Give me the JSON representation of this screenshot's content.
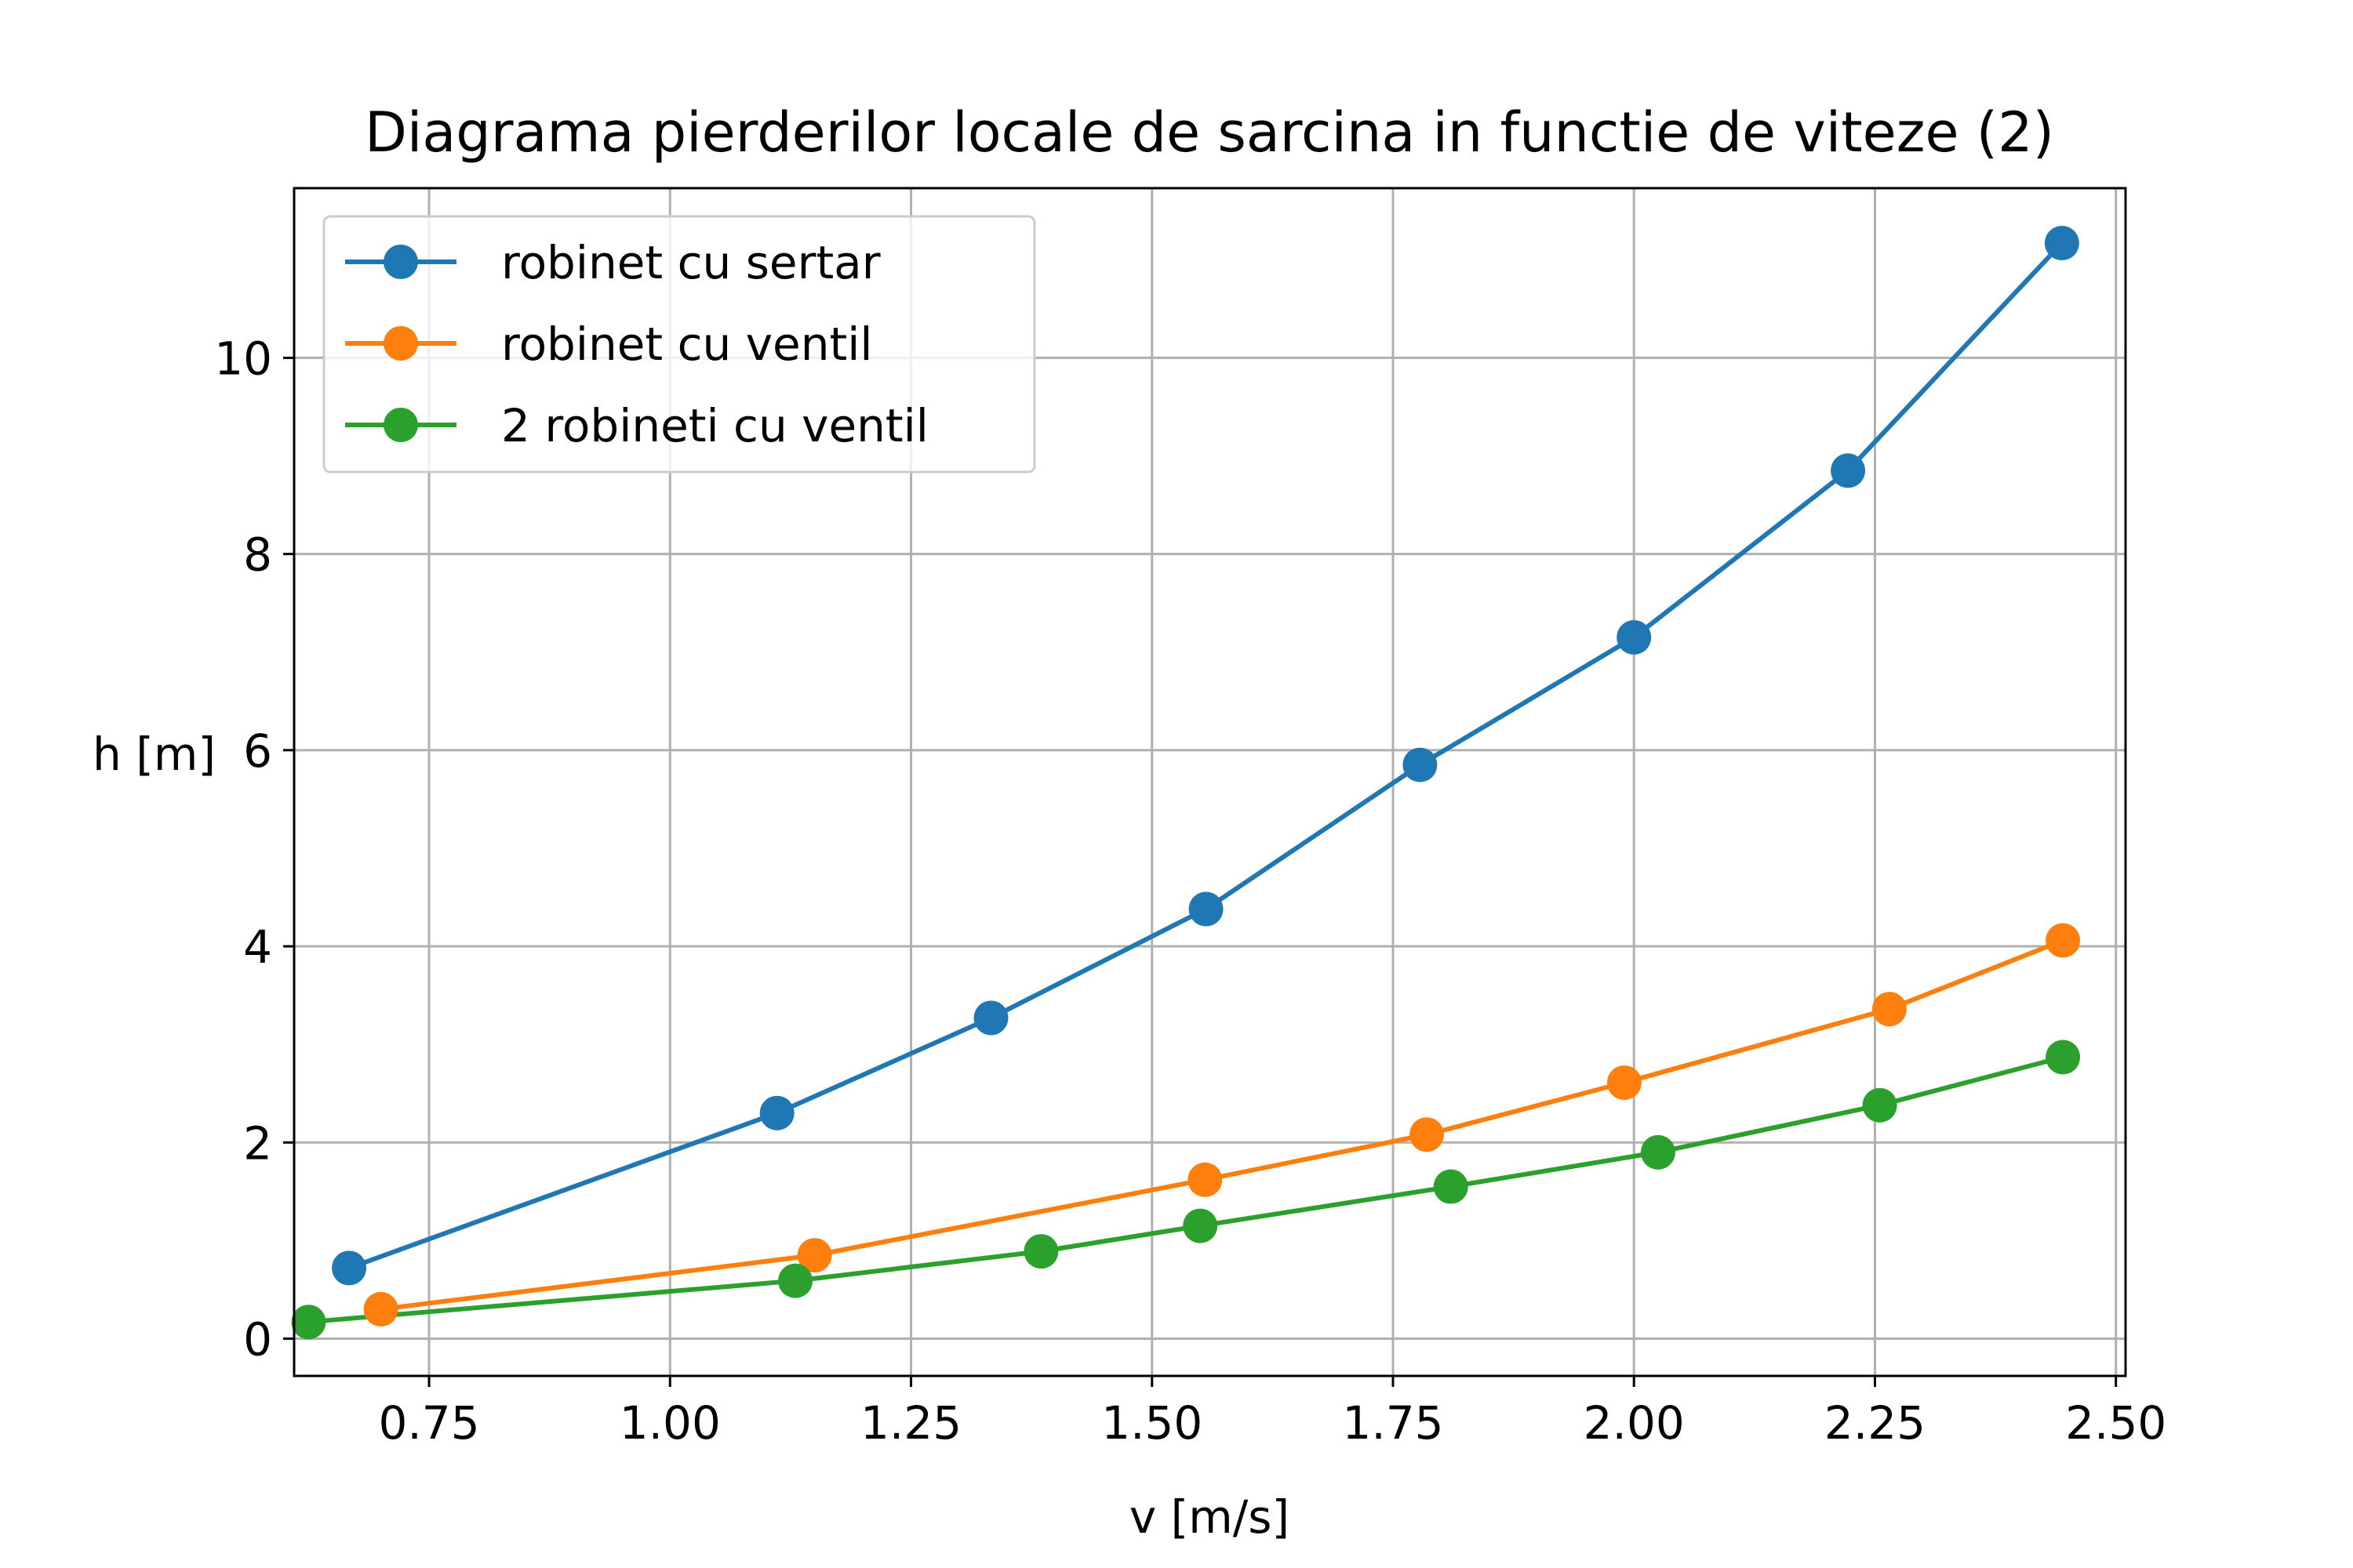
{
  "chart_data": {
    "type": "line",
    "title": "Diagrama pierderilor locale de sarcina in functie de viteze (2)",
    "xlabel": "v [m/s]",
    "ylabel": "h [m]",
    "xlim": [
      0.61,
      2.51
    ],
    "ylim": [
      -0.38,
      11.73
    ],
    "grid": true,
    "legend_position": "top-left",
    "xticks": [
      {
        "value": 0.75,
        "label": "0.75"
      },
      {
        "value": 1.0,
        "label": "1.00"
      },
      {
        "value": 1.25,
        "label": "1.25"
      },
      {
        "value": 1.5,
        "label": "1.50"
      },
      {
        "value": 1.75,
        "label": "1.75"
      },
      {
        "value": 2.0,
        "label": "2.00"
      },
      {
        "value": 2.25,
        "label": "2.25"
      },
      {
        "value": 2.5,
        "label": "2.50"
      }
    ],
    "yticks": [
      {
        "value": 0,
        "label": "0"
      },
      {
        "value": 2,
        "label": "2"
      },
      {
        "value": 4,
        "label": "4"
      },
      {
        "value": 6,
        "label": "6"
      },
      {
        "value": 8,
        "label": "8"
      },
      {
        "value": 10,
        "label": "10"
      }
    ],
    "series": [
      {
        "name": "robinet cu sertar",
        "color": "#1f77b4",
        "x": [
          0.667,
          1.111,
          1.333,
          1.556,
          1.778,
          2.0,
          2.222,
          2.444
        ],
        "y": [
          0.72,
          2.3,
          3.27,
          4.38,
          5.85,
          7.15,
          8.85,
          11.17
        ]
      },
      {
        "name": "robinet cu ventil",
        "color": "#ff7f0e",
        "x": [
          0.7,
          1.15,
          1.555,
          1.785,
          1.99,
          2.265,
          2.445
        ],
        "y": [
          0.3,
          0.85,
          1.62,
          2.08,
          2.61,
          3.36,
          4.06
        ]
      },
      {
        "name": "2 robineti cu ventil",
        "color": "#2ca02c",
        "x": [
          0.625,
          1.13,
          1.385,
          1.55,
          1.81,
          2.025,
          2.255,
          2.445
        ],
        "y": [
          0.17,
          0.59,
          0.89,
          1.15,
          1.55,
          1.9,
          2.38,
          2.87
        ]
      }
    ]
  }
}
